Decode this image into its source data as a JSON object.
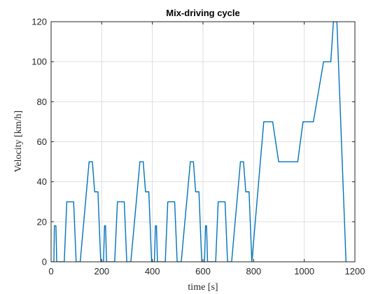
{
  "chart_data": {
    "type": "line",
    "title": "Mix-driving cycle",
    "xlabel": "time [s]",
    "ylabel": "Velocity [km/h]",
    "xlim": [
      0,
      1200
    ],
    "ylim": [
      0,
      120
    ],
    "xticks": [
      "0",
      "200",
      "400",
      "600",
      "800",
      "1000",
      "1200"
    ],
    "yticks": [
      "0",
      "20",
      "40",
      "60",
      "80",
      "100",
      "120"
    ],
    "grid": true,
    "color": "#0072BD",
    "series": [
      {
        "x": [
          0,
          11,
          13,
          17,
          19,
          22,
          52,
          62,
          89,
          99,
          115,
          150,
          163,
          172,
          185,
          196,
          207,
          211,
          215,
          219,
          251,
          262,
          289,
          299,
          315,
          351,
          364,
          373,
          386,
          397,
          408,
          412,
          416,
          420,
          451,
          461,
          488,
          498,
          514,
          550,
          562,
          571,
          584,
          595,
          606,
          610,
          614,
          618,
          650,
          660,
          687,
          697,
          713,
          748,
          760,
          769,
          782,
          793,
          840,
          875,
          899,
          974,
          995,
          1036,
          1076,
          1105,
          1115,
          1129,
          1165
        ],
        "y": [
          0,
          0,
          18,
          18,
          18,
          0,
          0,
          30,
          30,
          0,
          0,
          50,
          50,
          35,
          35,
          0,
          0,
          18,
          18,
          0,
          0,
          30,
          30,
          0,
          0,
          50,
          50,
          35,
          35,
          0,
          0,
          18,
          18,
          0,
          0,
          30,
          30,
          0,
          0,
          50,
          50,
          35,
          35,
          0,
          0,
          18,
          18,
          0,
          0,
          30,
          30,
          0,
          0,
          50,
          50,
          35,
          35,
          0,
          70,
          70,
          50,
          50,
          70,
          70,
          100,
          100,
          120,
          120,
          0
        ]
      }
    ]
  }
}
